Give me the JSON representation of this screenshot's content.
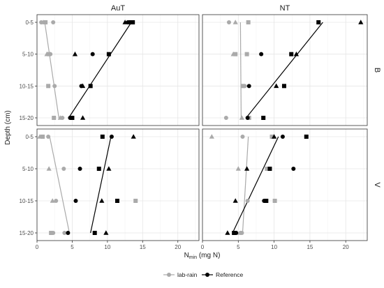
{
  "chart_data": {
    "type": "scatter",
    "layout": "facet-grid",
    "column_strips": [
      "AuT",
      "NT"
    ],
    "row_strips": [
      "B",
      "V"
    ],
    "xlabel_main": "N",
    "xlabel_sub": "min",
    "xlabel_rest": " (mg N)",
    "ylabel": "Depth (cm)",
    "xlim": [
      0,
      23
    ],
    "x_ticks": [
      0,
      5,
      10,
      15,
      20
    ],
    "x_tick_labels": [
      "0",
      "5",
      "10",
      "15",
      "20"
    ],
    "y_categories": [
      "0-5",
      "5-10",
      "10-15",
      "15-20"
    ],
    "grid": true,
    "legend_position": "bottom",
    "series": [
      {
        "name": "lab-rain",
        "color": "#aaaaaa",
        "marker": "circle"
      },
      {
        "name": "Reference",
        "color": "#000000",
        "marker": "circle"
      }
    ],
    "facets": [
      {
        "col": "AuT",
        "row": "B",
        "points": {
          "lab-rain": [
            {
              "x": 0.6,
              "y": "0-5",
              "shape": "circle"
            },
            {
              "x": 0.9,
              "y": "0-5",
              "shape": "triangle"
            },
            {
              "x": 1.2,
              "y": "0-5",
              "shape": "square"
            },
            {
              "x": 2.3,
              "y": "0-5",
              "shape": "circle"
            },
            {
              "x": 1.4,
              "y": "5-10",
              "shape": "triangle"
            },
            {
              "x": 1.7,
              "y": "5-10",
              "shape": "square"
            },
            {
              "x": 1.9,
              "y": "5-10",
              "shape": "circle"
            },
            {
              "x": 1.6,
              "y": "10-15",
              "shape": "square"
            },
            {
              "x": 2.5,
              "y": "10-15",
              "shape": "circle"
            },
            {
              "x": 2.4,
              "y": "15-20",
              "shape": "square"
            },
            {
              "x": 3.3,
              "y": "15-20",
              "shape": "triangle"
            },
            {
              "x": 3.6,
              "y": "15-20",
              "shape": "circle"
            }
          ],
          "Reference": [
            {
              "x": 12.5,
              "y": "0-5",
              "shape": "triangle"
            },
            {
              "x": 12.9,
              "y": "0-5",
              "shape": "circle"
            },
            {
              "x": 13.3,
              "y": "0-5",
              "shape": "square"
            },
            {
              "x": 13.6,
              "y": "0-5",
              "shape": "square"
            },
            {
              "x": 5.4,
              "y": "5-10",
              "shape": "triangle"
            },
            {
              "x": 7.9,
              "y": "5-10",
              "shape": "circle"
            },
            {
              "x": 10.2,
              "y": "5-10",
              "shape": "square"
            },
            {
              "x": 6.3,
              "y": "10-15",
              "shape": "circle"
            },
            {
              "x": 6.5,
              "y": "10-15",
              "shape": "triangle"
            },
            {
              "x": 7.6,
              "y": "10-15",
              "shape": "square"
            },
            {
              "x": 4.7,
              "y": "15-20",
              "shape": "circle"
            },
            {
              "x": 5.0,
              "y": "15-20",
              "shape": "square"
            },
            {
              "x": 6.5,
              "y": "15-20",
              "shape": "triangle"
            }
          ]
        },
        "lines": {
          "lab-rain": {
            "x_top": 1.1,
            "x_bottom": 3.1
          },
          "Reference": {
            "x_top": 13.4,
            "x_bottom": 4.5
          }
        }
      },
      {
        "col": "NT",
        "row": "B",
        "points": {
          "lab-rain": [
            {
              "x": 3.7,
              "y": "0-5",
              "shape": "circle"
            },
            {
              "x": 4.6,
              "y": "0-5",
              "shape": "triangle"
            },
            {
              "x": 6.4,
              "y": "0-5",
              "shape": "square"
            },
            {
              "x": 4.3,
              "y": "5-10",
              "shape": "triangle"
            },
            {
              "x": 4.6,
              "y": "5-10",
              "shape": "square"
            },
            {
              "x": 6.2,
              "y": "5-10",
              "shape": "square"
            },
            {
              "x": 5.6,
              "y": "10-15",
              "shape": "square"
            },
            {
              "x": 5.9,
              "y": "10-15",
              "shape": "circle"
            },
            {
              "x": 3.3,
              "y": "15-20",
              "shape": "circle"
            },
            {
              "x": 5.5,
              "y": "15-20",
              "shape": "triangle"
            },
            {
              "x": 6.5,
              "y": "15-20",
              "shape": "square"
            }
          ],
          "Reference": [
            {
              "x": 16.2,
              "y": "0-5",
              "shape": "square"
            },
            {
              "x": 22.1,
              "y": "0-5",
              "shape": "triangle"
            },
            {
              "x": 8.2,
              "y": "5-10",
              "shape": "circle"
            },
            {
              "x": 12.4,
              "y": "5-10",
              "shape": "square"
            },
            {
              "x": 13.1,
              "y": "5-10",
              "shape": "triangle"
            },
            {
              "x": 6.5,
              "y": "10-15",
              "shape": "circle"
            },
            {
              "x": 10.3,
              "y": "10-15",
              "shape": "triangle"
            },
            {
              "x": 11.4,
              "y": "10-15",
              "shape": "square"
            },
            {
              "x": 6.3,
              "y": "15-20",
              "shape": "circle"
            },
            {
              "x": 8.5,
              "y": "15-20",
              "shape": "square"
            }
          ]
        },
        "lines": {
          "lab-rain": {
            "x_top": 5.3,
            "x_bottom": 5.4
          },
          "Reference": {
            "x_top": 16.8,
            "x_bottom": 6.1
          }
        }
      },
      {
        "col": "AuT",
        "row": "V",
        "points": {
          "lab-rain": [
            {
              "x": 0.4,
              "y": "0-5",
              "shape": "triangle"
            },
            {
              "x": 0.8,
              "y": "0-5",
              "shape": "square"
            },
            {
              "x": 1.6,
              "y": "0-5",
              "shape": "circle"
            },
            {
              "x": 1.7,
              "y": "5-10",
              "shape": "triangle"
            },
            {
              "x": 3.8,
              "y": "5-10",
              "shape": "circle"
            },
            {
              "x": 2.2,
              "y": "10-15",
              "shape": "triangle"
            },
            {
              "x": 2.7,
              "y": "10-15",
              "shape": "circle"
            },
            {
              "x": 14.0,
              "y": "10-15",
              "shape": "square"
            },
            {
              "x": 2.0,
              "y": "15-20",
              "shape": "square"
            },
            {
              "x": 2.3,
              "y": "15-20",
              "shape": "circle"
            },
            {
              "x": 3.9,
              "y": "15-20",
              "shape": "circle"
            }
          ],
          "Reference": [
            {
              "x": 9.3,
              "y": "0-5",
              "shape": "square"
            },
            {
              "x": 10.6,
              "y": "0-5",
              "shape": "circle"
            },
            {
              "x": 13.7,
              "y": "0-5",
              "shape": "triangle"
            },
            {
              "x": 6.1,
              "y": "5-10",
              "shape": "circle"
            },
            {
              "x": 8.8,
              "y": "5-10",
              "shape": "square"
            },
            {
              "x": 10.2,
              "y": "5-10",
              "shape": "triangle"
            },
            {
              "x": 5.5,
              "y": "10-15",
              "shape": "circle"
            },
            {
              "x": 9.2,
              "y": "10-15",
              "shape": "triangle"
            },
            {
              "x": 11.4,
              "y": "10-15",
              "shape": "square"
            },
            {
              "x": 4.4,
              "y": "15-20",
              "shape": "circle"
            },
            {
              "x": 8.2,
              "y": "15-20",
              "shape": "square"
            },
            {
              "x": 9.8,
              "y": "15-20",
              "shape": "triangle"
            }
          ]
        },
        "lines": {
          "lab-rain": {
            "x_top": 1.8,
            "x_bottom": 4.6
          },
          "Reference": {
            "x_top": 10.5,
            "x_bottom": 7.6
          }
        }
      },
      {
        "col": "NT",
        "row": "V",
        "points": {
          "lab-rain": [
            {
              "x": 1.3,
              "y": "0-5",
              "shape": "triangle"
            },
            {
              "x": 5.6,
              "y": "0-5",
              "shape": "circle"
            },
            {
              "x": 9.7,
              "y": "0-5",
              "shape": "square"
            },
            {
              "x": 5.0,
              "y": "5-10",
              "shape": "triangle"
            },
            {
              "x": 9.0,
              "y": "5-10",
              "shape": "square"
            },
            {
              "x": 6.3,
              "y": "10-15",
              "shape": "circle"
            },
            {
              "x": 10.1,
              "y": "10-15",
              "shape": "square"
            },
            {
              "x": 4.8,
              "y": "15-20",
              "shape": "triangle"
            },
            {
              "x": 5.3,
              "y": "15-20",
              "shape": "circle"
            },
            {
              "x": 5.5,
              "y": "15-20",
              "shape": "circle"
            }
          ],
          "Reference": [
            {
              "x": 10.0,
              "y": "0-5",
              "shape": "triangle"
            },
            {
              "x": 11.2,
              "y": "0-5",
              "shape": "circle"
            },
            {
              "x": 14.5,
              "y": "0-5",
              "shape": "square"
            },
            {
              "x": 6.2,
              "y": "5-10",
              "shape": "triangle"
            },
            {
              "x": 9.4,
              "y": "5-10",
              "shape": "square"
            },
            {
              "x": 12.7,
              "y": "5-10",
              "shape": "circle"
            },
            {
              "x": 4.6,
              "y": "10-15",
              "shape": "triangle"
            },
            {
              "x": 8.6,
              "y": "10-15",
              "shape": "circle"
            },
            {
              "x": 8.9,
              "y": "10-15",
              "shape": "square"
            },
            {
              "x": 3.5,
              "y": "15-20",
              "shape": "triangle"
            },
            {
              "x": 4.4,
              "y": "15-20",
              "shape": "square"
            },
            {
              "x": 4.7,
              "y": "15-20",
              "shape": "circle"
            }
          ]
        },
        "lines": {
          "lab-rain": {
            "x_top": 6.4,
            "x_bottom": 5.6
          },
          "Reference": {
            "x_top": 10.6,
            "x_bottom": 4.2
          }
        }
      }
    ]
  }
}
